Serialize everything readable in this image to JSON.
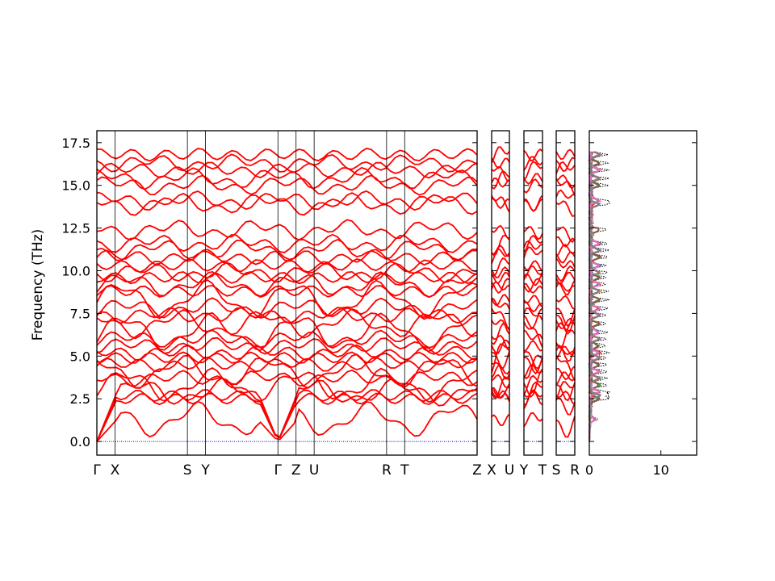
{
  "chart_data": {
    "type": "line",
    "title": "",
    "ylabel": "Frequency (THz)",
    "ylim": [
      -0.8,
      18.2
    ],
    "yticks": [
      "0.0",
      "2.5",
      "5.0",
      "7.5",
      "10.0",
      "12.5",
      "15.0",
      "17.5"
    ],
    "band_color": "#ff0000",
    "zero_line_color": "#0000cc",
    "panels": [
      {
        "labels": [
          "Γ",
          "X",
          "S",
          "Y",
          "Γ",
          "Z",
          "U",
          "R",
          "T",
          "Z"
        ],
        "segments": [
          1,
          4,
          1,
          4,
          1,
          1,
          4,
          1,
          4
        ]
      },
      {
        "labels": [
          "X",
          "U"
        ],
        "segments": [
          1
        ]
      },
      {
        "labels": [
          "Y",
          "T"
        ],
        "segments": [
          1
        ]
      },
      {
        "labels": [
          "S",
          "R"
        ],
        "segments": [
          1
        ]
      }
    ],
    "dos": {
      "xticks": [
        "0",
        "10"
      ],
      "xlim": [
        0,
        15
      ],
      "total_color": "#000000",
      "partial_colors": [
        "#1f77b4",
        "#ff7f0e",
        "#2ca02c",
        "#d62728",
        "#9467bd",
        "#8c564b",
        "#e377c2",
        "#7f7f7f"
      ]
    }
  }
}
